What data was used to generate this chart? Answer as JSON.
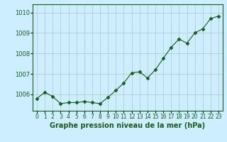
{
  "x": [
    0,
    1,
    2,
    3,
    4,
    5,
    6,
    7,
    8,
    9,
    10,
    11,
    12,
    13,
    14,
    15,
    16,
    17,
    18,
    19,
    20,
    21,
    22,
    23
  ],
  "y": [
    1005.8,
    1006.1,
    1005.9,
    1005.55,
    1005.6,
    1005.6,
    1005.65,
    1005.6,
    1005.55,
    1005.85,
    1006.2,
    1006.55,
    1007.05,
    1007.1,
    1006.8,
    1007.2,
    1007.75,
    1008.3,
    1008.7,
    1008.5,
    1009.0,
    1009.2,
    1009.7,
    1009.82
  ],
  "line_color": "#1a5c1a",
  "marker_color": "#1a5c1a",
  "bg_color": "#cceeff",
  "grid_color": "#b0c8c8",
  "xlabel": "Graphe pression niveau de la mer (hPa)",
  "xlabel_color": "#1a5c1a",
  "ylabel_ticks": [
    1006,
    1007,
    1008,
    1009,
    1010
  ],
  "ylim": [
    1005.2,
    1010.4
  ],
  "xlim": [
    -0.5,
    23.5
  ],
  "figsize": [
    3.2,
    2.0
  ],
  "dpi": 100
}
